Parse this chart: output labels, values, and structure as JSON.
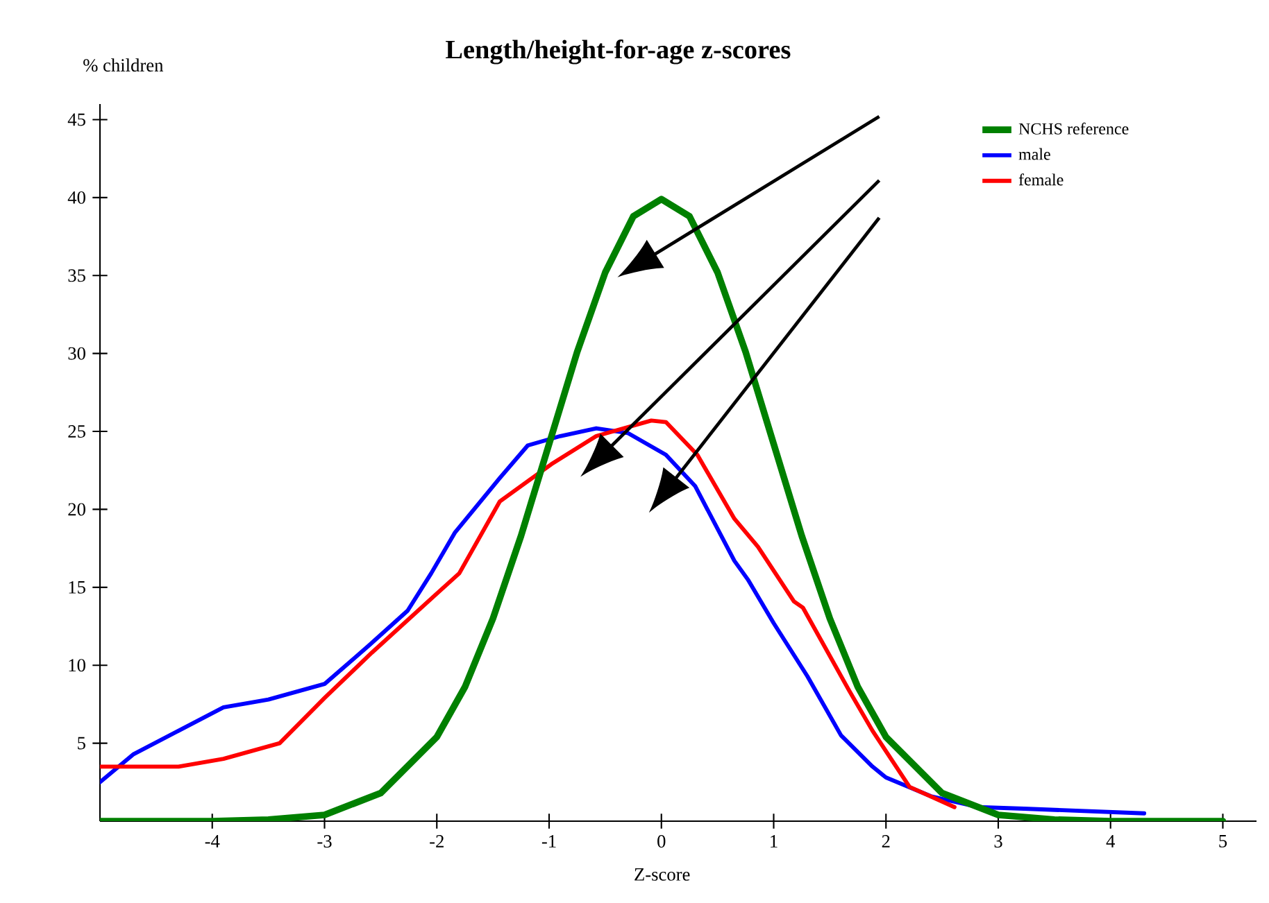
{
  "chart_data": {
    "type": "line",
    "title": "Length/height-for-age z-scores",
    "xlabel": "Z-score",
    "ylabel": "% children",
    "series": [
      {
        "name": "NCHS reference",
        "color": "#008000",
        "x": [
          -5,
          -4,
          -3.5,
          -3,
          -2.5,
          -2,
          -1.75,
          -1.5,
          -1.25,
          -1,
          -0.75,
          -0.5,
          -0.25,
          0,
          0.25,
          0.5,
          0.75,
          1,
          1.25,
          1.5,
          1.75,
          2,
          2.5,
          3,
          3.5,
          4,
          5
        ],
        "values": [
          0,
          0,
          0.1,
          0.4,
          1.8,
          5.4,
          8.6,
          13,
          18.3,
          24.2,
          30.1,
          35.2,
          38.8,
          39.9,
          38.8,
          35.2,
          30.1,
          24.2,
          18.3,
          13,
          8.6,
          5.4,
          1.8,
          0.4,
          0.1,
          0,
          0
        ]
      },
      {
        "name": "male",
        "color": "#0000ff",
        "x": [
          -5,
          -4.7,
          -4.3,
          -3.9,
          -3.5,
          -3,
          -2.6,
          -2.26,
          -2.05,
          -1.84,
          -1.44,
          -1.19,
          -0.9,
          -0.58,
          -0.3,
          0.04,
          0.3,
          0.65,
          0.77,
          1,
          1.3,
          1.6,
          1.88,
          2,
          2.4,
          2.82,
          3.23,
          4.3
        ],
        "values": [
          2.5,
          4.3,
          5.8,
          7.3,
          7.8,
          8.8,
          11.3,
          13.5,
          15.9,
          18.5,
          22,
          24.1,
          24.7,
          25.2,
          24.9,
          23.5,
          21.5,
          16.7,
          15.5,
          12.7,
          9.3,
          5.5,
          3.5,
          2.8,
          1.6,
          0.9,
          0.8,
          0.5
        ]
      },
      {
        "name": "female",
        "color": "#ff0000",
        "x": [
          -5,
          -4.3,
          -3.9,
          -3.4,
          -3,
          -2.58,
          -2,
          -1.8,
          -1.44,
          -0.98,
          -0.58,
          -0.09,
          0.04,
          0.32,
          0.65,
          0.86,
          1.18,
          1.26,
          1.67,
          1.88,
          2.21,
          2.61
        ],
        "values": [
          3.5,
          3.5,
          4,
          5,
          7.9,
          10.8,
          14.6,
          15.9,
          20.5,
          22.9,
          24.7,
          25.7,
          25.6,
          23.5,
          19.4,
          17.6,
          14.1,
          13.7,
          8.4,
          5.8,
          2.2,
          0.9
        ]
      }
    ],
    "xlim": [
      -5,
      5.3
    ],
    "ylim": [
      0,
      46
    ],
    "xticks": [
      -4,
      -3,
      -2,
      -1,
      0,
      1,
      2,
      3,
      4,
      5
    ],
    "yticks": [
      5,
      10,
      15,
      20,
      25,
      30,
      35,
      40,
      45
    ],
    "legend": "top right",
    "marker": "none",
    "line_style": "solid"
  }
}
